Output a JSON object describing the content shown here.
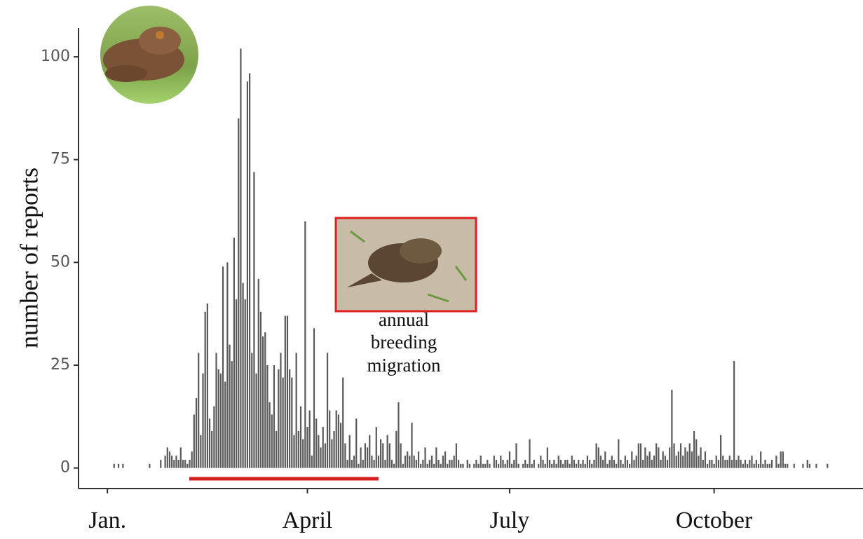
{
  "chart_data": {
    "type": "bar",
    "ylabel": "number of reports",
    "annotation": [
      "annual",
      "breeding",
      "migration"
    ],
    "color": "#595959",
    "grid": false,
    "xlim": [
      -12,
      341
    ],
    "ylim": [
      -5,
      107
    ],
    "yticks": [
      0,
      25,
      50,
      75,
      100
    ],
    "xticks": [
      {
        "value": 1,
        "label": "Jan."
      },
      {
        "value": 91,
        "label": "April"
      },
      {
        "value": 182,
        "label": "July"
      },
      {
        "value": 274,
        "label": "October"
      }
    ],
    "x": [
      4,
      6,
      8,
      20,
      25,
      27,
      28,
      29,
      30,
      31,
      32,
      33,
      34,
      35,
      36,
      37,
      38,
      39,
      40,
      41,
      42,
      43,
      44,
      45,
      46,
      47,
      48,
      49,
      50,
      51,
      52,
      53,
      54,
      55,
      56,
      57,
      58,
      59,
      60,
      61,
      62,
      63,
      64,
      65,
      66,
      67,
      68,
      69,
      70,
      71,
      72,
      73,
      74,
      75,
      76,
      77,
      78,
      79,
      80,
      81,
      82,
      83,
      84,
      85,
      86,
      87,
      88,
      89,
      90,
      91,
      92,
      93,
      94,
      95,
      96,
      97,
      98,
      99,
      100,
      101,
      102,
      103,
      104,
      105,
      106,
      107,
      108,
      109,
      110,
      111,
      112,
      113,
      114,
      115,
      116,
      117,
      118,
      119,
      120,
      121,
      122,
      123,
      124,
      125,
      126,
      127,
      128,
      129,
      130,
      131,
      132,
      133,
      134,
      135,
      136,
      137,
      138,
      139,
      140,
      141,
      142,
      143,
      144,
      145,
      146,
      147,
      148,
      149,
      150,
      151,
      152,
      153,
      154,
      155,
      156,
      157,
      158,
      159,
      160,
      161,
      163,
      164,
      166,
      167,
      168,
      169,
      170,
      171,
      172,
      173,
      175,
      176,
      177,
      178,
      179,
      180,
      181,
      182,
      183,
      184,
      185,
      186,
      188,
      189,
      190,
      191,
      192,
      193,
      195,
      196,
      197,
      198,
      199,
      200,
      201,
      202,
      203,
      204,
      205,
      206,
      207,
      208,
      209,
      210,
      211,
      212,
      213,
      214,
      215,
      216,
      217,
      218,
      219,
      220,
      221,
      222,
      223,
      224,
      225,
      226,
      227,
      228,
      229,
      230,
      231,
      232,
      233,
      234,
      235,
      236,
      237,
      238,
      239,
      240,
      241,
      242,
      243,
      244,
      245,
      246,
      247,
      248,
      249,
      250,
      251,
      252,
      253,
      254,
      255,
      256,
      257,
      258,
      259,
      260,
      261,
      262,
      263,
      264,
      265,
      266,
      267,
      268,
      269,
      270,
      271,
      272,
      273,
      274,
      275,
      276,
      277,
      278,
      279,
      280,
      281,
      282,
      283,
      284,
      285,
      286,
      287,
      288,
      289,
      290,
      291,
      292,
      293,
      294,
      295,
      296,
      297,
      298,
      299,
      300,
      302,
      303,
      304,
      305,
      306,
      307,
      310,
      314,
      316,
      317,
      320,
      325
    ],
    "values": [
      1,
      1,
      1,
      1,
      2,
      3,
      5,
      4,
      3,
      2,
      3,
      2,
      5,
      2,
      2,
      1,
      2,
      4,
      13,
      17,
      28,
      8,
      23,
      38,
      40,
      12,
      9,
      15,
      28,
      24,
      23,
      49,
      21,
      50,
      30,
      26,
      56,
      41,
      85,
      102,
      45,
      41,
      94,
      96,
      28,
      72,
      23,
      46,
      38,
      32,
      33,
      25,
      16,
      13,
      25,
      9,
      24,
      28,
      22,
      37,
      37,
      24,
      22,
      8,
      28,
      9,
      15,
      7,
      60,
      10,
      14,
      3,
      34,
      12,
      8,
      5,
      10,
      6,
      28,
      14,
      7,
      9,
      14,
      13,
      11,
      22,
      6,
      2,
      8,
      2,
      3,
      12,
      1,
      5,
      2,
      6,
      5,
      8,
      3,
      2,
      10,
      3,
      7,
      6,
      2,
      8,
      6,
      2,
      1,
      9,
      16,
      6,
      1,
      3,
      4,
      3,
      11,
      3,
      2,
      4,
      1,
      2,
      5,
      1,
      2,
      3,
      1,
      5,
      2,
      1,
      3,
      4,
      1,
      2,
      2,
      3,
      6,
      2,
      1,
      1,
      2,
      1,
      1,
      2,
      1,
      3,
      1,
      1,
      2,
      1,
      3,
      2,
      1,
      3,
      2,
      1,
      2,
      4,
      1,
      2,
      6,
      1,
      1,
      2,
      1,
      7,
      1,
      2,
      1,
      3,
      2,
      1,
      5,
      2,
      1,
      2,
      1,
      3,
      2,
      1,
      2,
      2,
      1,
      3,
      2,
      1,
      2,
      1,
      2,
      1,
      3,
      2,
      1,
      2,
      6,
      5,
      3,
      2,
      4,
      1,
      2,
      3,
      2,
      1,
      7,
      2,
      1,
      3,
      2,
      1,
      4,
      2,
      3,
      6,
      6,
      2,
      5,
      3,
      4,
      2,
      3,
      6,
      5,
      2,
      4,
      3,
      2,
      5,
      19,
      6,
      3,
      4,
      6,
      3,
      5,
      4,
      6,
      4,
      9,
      7,
      3,
      5,
      2,
      4,
      1,
      2,
      2,
      1,
      3,
      2,
      8,
      3,
      2,
      2,
      3,
      2,
      26,
      2,
      3,
      2,
      1,
      2,
      1,
      2,
      3,
      1,
      2,
      1,
      4,
      1,
      2,
      1,
      1,
      2,
      3,
      1,
      4,
      4,
      1,
      1,
      1,
      1,
      2,
      1,
      1,
      1
    ]
  }
}
